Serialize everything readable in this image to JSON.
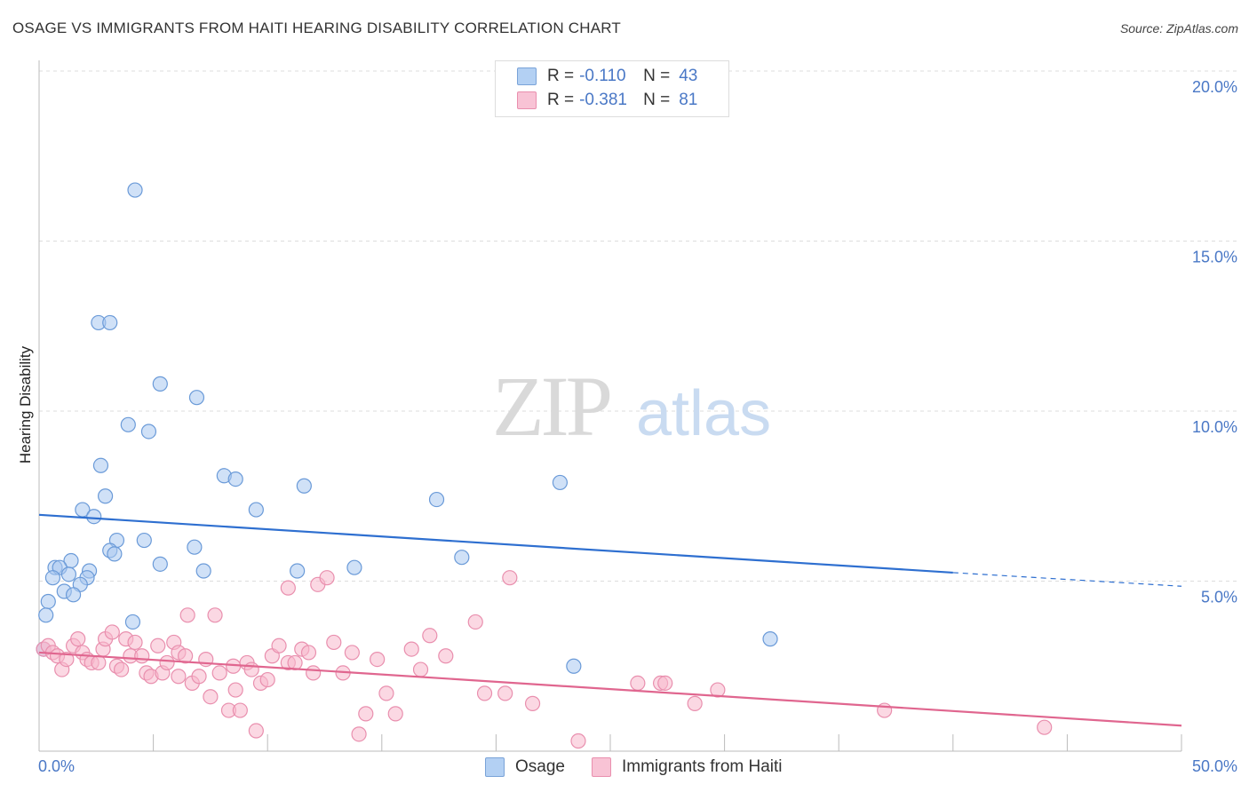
{
  "title": "OSAGE VS IMMIGRANTS FROM HAITI HEARING DISABILITY CORRELATION CHART",
  "source": "Source: ZipAtlas.com",
  "watermark": {
    "zip": "ZIP",
    "atlas": "atlas"
  },
  "legend": {
    "r_label": "R =",
    "n_label": "N =",
    "rows": [
      {
        "r": "-0.110",
        "n": "43"
      },
      {
        "r": "-0.381",
        "n": "81"
      }
    ]
  },
  "colors": {
    "osage_fill": "#a9c9f0",
    "osage_stroke": "#6a9ad8",
    "osage_line": "#2e6fd0",
    "haiti_fill": "#f7b8cc",
    "haiti_stroke": "#e98fae",
    "haiti_line": "#e0668f",
    "grid": "#dddddd",
    "axis_text": "#4a78c6"
  },
  "chart_data": {
    "type": "scatter",
    "title": "OSAGE VS IMMIGRANTS FROM HAITI HEARING DISABILITY CORRELATION CHART",
    "xlabel": "",
    "ylabel": "Hearing Disability",
    "xlim": [
      0,
      50
    ],
    "ylim": [
      0,
      20
    ],
    "x_tick_labels": [
      "0.0%",
      "50.0%"
    ],
    "y_ticks": [
      5,
      10,
      15,
      20
    ],
    "y_tick_labels": [
      "5.0%",
      "10.0%",
      "15.0%",
      "20.0%"
    ],
    "series": [
      {
        "name": "Osage",
        "r": -0.11,
        "n": 43,
        "trend": {
          "x0": 0,
          "y0": 6.95,
          "x1": 40,
          "y1": 5.25,
          "dashed_to_x": 50,
          "dashed_to_y": 4.85
        },
        "points": [
          [
            4.2,
            16.5
          ],
          [
            2.6,
            12.6
          ],
          [
            3.1,
            12.6
          ],
          [
            5.3,
            10.8
          ],
          [
            6.9,
            10.4
          ],
          [
            3.9,
            9.6
          ],
          [
            4.8,
            9.4
          ],
          [
            2.7,
            8.4
          ],
          [
            8.1,
            8.1
          ],
          [
            8.6,
            8.0
          ],
          [
            11.6,
            7.8
          ],
          [
            2.9,
            7.5
          ],
          [
            17.4,
            7.4
          ],
          [
            22.8,
            7.9
          ],
          [
            9.5,
            7.1
          ],
          [
            1.9,
            7.1
          ],
          [
            2.4,
            6.9
          ],
          [
            4.6,
            6.2
          ],
          [
            3.4,
            6.2
          ],
          [
            6.8,
            6.0
          ],
          [
            3.1,
            5.9
          ],
          [
            3.3,
            5.8
          ],
          [
            1.4,
            5.6
          ],
          [
            5.3,
            5.5
          ],
          [
            0.7,
            5.4
          ],
          [
            0.9,
            5.4
          ],
          [
            1.3,
            5.2
          ],
          [
            2.2,
            5.3
          ],
          [
            7.2,
            5.3
          ],
          [
            11.3,
            5.3
          ],
          [
            13.8,
            5.4
          ],
          [
            18.5,
            5.7
          ],
          [
            0.6,
            5.1
          ],
          [
            2.1,
            5.1
          ],
          [
            1.8,
            4.9
          ],
          [
            1.1,
            4.7
          ],
          [
            1.5,
            4.6
          ],
          [
            0.4,
            4.4
          ],
          [
            0.3,
            4.0
          ],
          [
            4.1,
            3.8
          ],
          [
            32.0,
            3.3
          ],
          [
            23.4,
            2.5
          ],
          [
            0.2,
            3.0
          ]
        ]
      },
      {
        "name": "Immigrants from Haiti",
        "r": -0.381,
        "n": 81,
        "trend": {
          "x0": 0,
          "y0": 2.9,
          "x1": 50,
          "y1": 0.75
        },
        "points": [
          [
            0.2,
            3.0
          ],
          [
            0.4,
            3.1
          ],
          [
            0.6,
            2.9
          ],
          [
            0.8,
            2.8
          ],
          [
            1.0,
            2.4
          ],
          [
            1.2,
            2.7
          ],
          [
            1.5,
            3.1
          ],
          [
            1.7,
            3.3
          ],
          [
            1.9,
            2.9
          ],
          [
            2.1,
            2.7
          ],
          [
            2.3,
            2.6
          ],
          [
            2.6,
            2.6
          ],
          [
            2.8,
            3.0
          ],
          [
            2.9,
            3.3
          ],
          [
            3.2,
            3.5
          ],
          [
            3.4,
            2.5
          ],
          [
            3.6,
            2.4
          ],
          [
            3.8,
            3.3
          ],
          [
            4.0,
            2.8
          ],
          [
            4.2,
            3.2
          ],
          [
            4.5,
            2.8
          ],
          [
            4.7,
            2.3
          ],
          [
            4.9,
            2.2
          ],
          [
            5.2,
            3.1
          ],
          [
            5.4,
            2.3
          ],
          [
            5.6,
            2.6
          ],
          [
            5.9,
            3.2
          ],
          [
            6.1,
            2.9
          ],
          [
            6.4,
            2.8
          ],
          [
            6.5,
            4.0
          ],
          [
            6.7,
            2.0
          ],
          [
            7.0,
            2.2
          ],
          [
            7.3,
            2.7
          ],
          [
            7.5,
            1.6
          ],
          [
            7.7,
            4.0
          ],
          [
            7.9,
            2.3
          ],
          [
            8.3,
            1.2
          ],
          [
            8.5,
            2.5
          ],
          [
            8.6,
            1.8
          ],
          [
            8.8,
            1.2
          ],
          [
            9.1,
            2.6
          ],
          [
            9.3,
            2.4
          ],
          [
            9.5,
            0.6
          ],
          [
            9.7,
            2.0
          ],
          [
            10.0,
            2.1
          ],
          [
            10.2,
            2.8
          ],
          [
            10.5,
            3.1
          ],
          [
            10.9,
            2.6
          ],
          [
            11.2,
            2.6
          ],
          [
            11.5,
            3.0
          ],
          [
            11.8,
            2.9
          ],
          [
            12.0,
            2.3
          ],
          [
            12.2,
            4.9
          ],
          [
            12.6,
            5.1
          ],
          [
            12.9,
            3.2
          ],
          [
            13.3,
            2.3
          ],
          [
            13.7,
            2.9
          ],
          [
            14.0,
            0.5
          ],
          [
            14.3,
            1.1
          ],
          [
            14.8,
            2.7
          ],
          [
            15.2,
            1.7
          ],
          [
            15.6,
            1.1
          ],
          [
            16.3,
            3.0
          ],
          [
            16.7,
            2.4
          ],
          [
            17.1,
            3.4
          ],
          [
            17.8,
            2.8
          ],
          [
            19.1,
            3.8
          ],
          [
            19.5,
            1.7
          ],
          [
            20.4,
            1.7
          ],
          [
            20.6,
            5.1
          ],
          [
            21.6,
            1.4
          ],
          [
            23.6,
            0.3
          ],
          [
            26.2,
            2.0
          ],
          [
            27.2,
            2.0
          ],
          [
            27.4,
            2.0
          ],
          [
            28.7,
            1.4
          ],
          [
            29.7,
            1.8
          ],
          [
            37.0,
            1.2
          ],
          [
            44.0,
            0.7
          ],
          [
            6.1,
            2.2
          ],
          [
            10.9,
            4.8
          ]
        ]
      }
    ]
  },
  "bottom_legend": [
    "Osage",
    "Immigrants from Haiti"
  ]
}
